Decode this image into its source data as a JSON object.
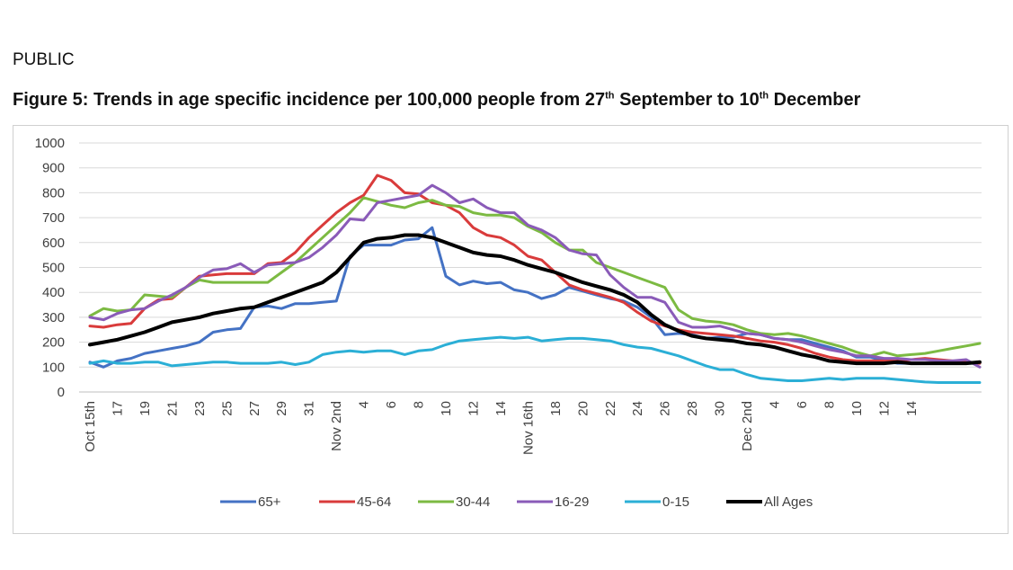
{
  "page": {
    "header_label": "PUBLIC",
    "title_main": "Figure 5: Trends in age specific incidence per 100,000 people from 27",
    "title_sup1": "th",
    "title_mid": " September to 10",
    "title_sup2": "th",
    "title_end": " December"
  },
  "chart_data": {
    "type": "line",
    "ylim": [
      0,
      1000
    ],
    "yticks": [
      0,
      100,
      200,
      300,
      400,
      500,
      600,
      700,
      800,
      900,
      1000
    ],
    "grid": true,
    "legend_position": "bottom",
    "x_tick_labels": [
      "Oct 15th",
      "17",
      "19",
      "21",
      "23",
      "25",
      "27",
      "29",
      "31",
      "Nov 2nd",
      "4",
      "6",
      "8",
      "10",
      "12",
      "14",
      "Nov 16th",
      "18",
      "20",
      "22",
      "24",
      "26",
      "28",
      "30",
      "Dec 2nd",
      "4",
      "6",
      "8",
      "10",
      "12",
      "14"
    ],
    "series": [
      {
        "name": "65+",
        "color": "#4472c4",
        "width": 3,
        "values": [
          120,
          100,
          125,
          135,
          155,
          165,
          175,
          185,
          200,
          240,
          250,
          255,
          340,
          345,
          335,
          355,
          355,
          360,
          365,
          545,
          590,
          590,
          590,
          610,
          615,
          660,
          465,
          430,
          445,
          435,
          440,
          410,
          400,
          375,
          390,
          420,
          405,
          390,
          375,
          365,
          340,
          300,
          230,
          235,
          230,
          215,
          220,
          220,
          235,
          230,
          215,
          210,
          210,
          195,
          180,
          165,
          140,
          140,
          125,
          115,
          115,
          115,
          115,
          115,
          115,
          115
        ]
      },
      {
        "name": "45-64",
        "color": "#d93b3b",
        "width": 3,
        "values": [
          265,
          260,
          270,
          275,
          335,
          370,
          375,
          420,
          465,
          470,
          475,
          475,
          475,
          515,
          520,
          560,
          620,
          670,
          720,
          760,
          790,
          870,
          850,
          800,
          795,
          760,
          750,
          720,
          660,
          630,
          620,
          590,
          545,
          530,
          480,
          430,
          410,
          395,
          380,
          360,
          320,
          285,
          265,
          250,
          240,
          235,
          230,
          225,
          215,
          205,
          200,
          190,
          175,
          155,
          140,
          130,
          125,
          125,
          125,
          125,
          130,
          135,
          130,
          125,
          120,
          115
        ]
      },
      {
        "name": "30-44",
        "color": "#7cba42",
        "width": 3,
        "values": [
          305,
          335,
          325,
          330,
          390,
          385,
          380,
          420,
          450,
          440,
          440,
          440,
          440,
          440,
          480,
          520,
          570,
          620,
          670,
          720,
          780,
          765,
          750,
          740,
          760,
          770,
          750,
          745,
          720,
          710,
          710,
          700,
          665,
          640,
          600,
          570,
          570,
          520,
          500,
          480,
          460,
          440,
          420,
          330,
          295,
          285,
          280,
          270,
          250,
          235,
          230,
          235,
          225,
          210,
          195,
          180,
          160,
          145,
          160,
          145,
          150,
          155,
          165,
          175,
          185,
          195
        ]
      },
      {
        "name": "16-29",
        "color": "#8a5bb8",
        "width": 3,
        "values": [
          300,
          290,
          315,
          330,
          335,
          365,
          390,
          420,
          460,
          490,
          495,
          515,
          480,
          510,
          515,
          520,
          540,
          580,
          630,
          695,
          690,
          760,
          770,
          780,
          790,
          830,
          800,
          760,
          775,
          740,
          720,
          720,
          670,
          650,
          620,
          570,
          555,
          550,
          470,
          420,
          380,
          380,
          360,
          280,
          260,
          260,
          265,
          250,
          235,
          230,
          215,
          210,
          200,
          185,
          170,
          160,
          145,
          145,
          135,
          135,
          130,
          130,
          125,
          125,
          130,
          100
        ]
      },
      {
        "name": "0-15",
        "color": "#2bafd6",
        "width": 3,
        "values": [
          115,
          125,
          115,
          115,
          120,
          120,
          105,
          110,
          115,
          120,
          120,
          115,
          115,
          115,
          120,
          110,
          120,
          150,
          160,
          165,
          160,
          165,
          165,
          150,
          165,
          170,
          190,
          205,
          210,
          215,
          220,
          215,
          220,
          205,
          210,
          215,
          215,
          210,
          205,
          190,
          180,
          175,
          160,
          145,
          125,
          105,
          90,
          90,
          70,
          55,
          50,
          45,
          45,
          50,
          55,
          50,
          55,
          55,
          55,
          50,
          45,
          40,
          38,
          38,
          38,
          38
        ]
      },
      {
        "name": "All Ages",
        "color": "#000000",
        "width": 4,
        "values": [
          190,
          200,
          210,
          225,
          240,
          260,
          280,
          290,
          300,
          315,
          325,
          335,
          340,
          360,
          380,
          400,
          420,
          440,
          480,
          540,
          600,
          615,
          620,
          630,
          630,
          620,
          600,
          580,
          560,
          550,
          545,
          530,
          510,
          495,
          480,
          460,
          440,
          425,
          410,
          390,
          360,
          310,
          270,
          245,
          225,
          215,
          210,
          205,
          195,
          190,
          180,
          165,
          150,
          140,
          125,
          120,
          115,
          115,
          115,
          120,
          115,
          115,
          115,
          115,
          115,
          120
        ]
      }
    ]
  }
}
